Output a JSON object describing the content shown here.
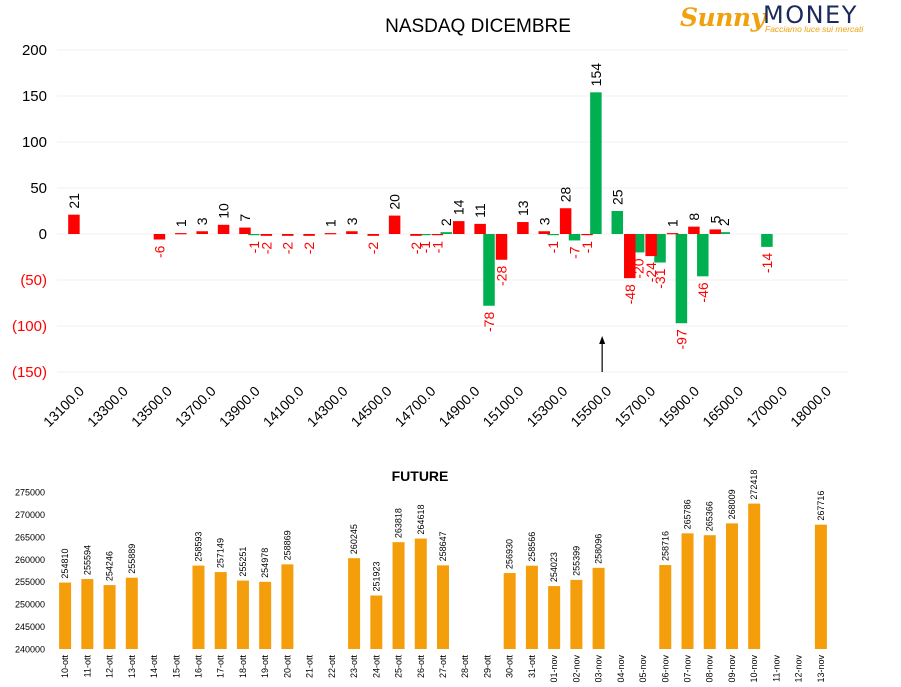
{
  "logo": {
    "brand_part1": "Sunny",
    "brand_part2": "MONEY",
    "tagline": "Facciamo luce sui mercati"
  },
  "colors": {
    "positive": "#00b050",
    "negative": "#ff0000",
    "negative_label": "#ff0000",
    "future_bar": "#f59e0b",
    "text": "#000000"
  },
  "chart_data": [
    {
      "type": "bar",
      "title": "NASDAQ DICEMBRE",
      "ylim": [
        -150,
        200
      ],
      "y_ticks": [
        "200",
        "150",
        "100",
        "50",
        "0",
        "(50)",
        "(100)",
        "(150)"
      ],
      "x_tick_labels": [
        "13100.0",
        "13300.0",
        "13500.0",
        "13700.0",
        "13900.0",
        "14100.0",
        "14300.0",
        "14500.0",
        "14700.0",
        "14900.0",
        "15100.0",
        "15300.0",
        "15500.0",
        "15700.0",
        "15900.0",
        "16500.0",
        "17000.0",
        "18000.0"
      ],
      "slot_count": 37,
      "series": [
        {
          "color": "green",
          "values": [
            null,
            null,
            null,
            null,
            null,
            null,
            null,
            null,
            null,
            -1,
            null,
            null,
            null,
            null,
            null,
            null,
            null,
            -1,
            2,
            null,
            -78,
            null,
            null,
            -1,
            -7,
            154,
            25,
            -20,
            -31,
            -97,
            -46,
            2,
            null,
            -14,
            null,
            null,
            null
          ]
        },
        {
          "color": "red",
          "values": [
            21,
            null,
            null,
            null,
            -6,
            1,
            3,
            10,
            7,
            -2,
            -2,
            -2,
            1,
            3,
            -2,
            20,
            -2,
            -1,
            14,
            11,
            -28,
            13,
            3,
            28,
            -1,
            null,
            -48,
            -24,
            1,
            8,
            5,
            null,
            null,
            null,
            null,
            null,
            null
          ]
        }
      ],
      "annotations": [
        {
          "type": "arrow",
          "slot": 25.5
        }
      ]
    },
    {
      "type": "bar",
      "title": "FUTURE",
      "ylim": [
        240000,
        275000
      ],
      "y_ticks": [
        "275000",
        "270000",
        "265000",
        "260000",
        "255000",
        "250000",
        "245000",
        "240000"
      ],
      "categories": [
        "10-ott",
        "11-ott",
        "12-ott",
        "13-ott",
        "14-ott",
        "15-ott",
        "16-ott",
        "17-ott",
        "18-ott",
        "19-ott",
        "20-ott",
        "21-ott",
        "22-ott",
        "23-ott",
        "24-ott",
        "25-ott",
        "26-ott",
        "27-ott",
        "28-ott",
        "29-ott",
        "30-ott",
        "31-ott",
        "01-nov",
        "02-nov",
        "03-nov",
        "04-nov",
        "05-nov",
        "06-nov",
        "07-nov",
        "08-nov",
        "09-nov",
        "10-nov",
        "11-nov",
        "12-nov",
        "13-nov"
      ],
      "values": [
        254810,
        255594,
        254246,
        255889,
        null,
        null,
        258593,
        257149,
        255251,
        254978,
        258869,
        null,
        null,
        260245,
        251923,
        263818,
        264618,
        258647,
        null,
        null,
        256930,
        258566,
        254023,
        255399,
        258096,
        null,
        null,
        258716,
        265786,
        265366,
        268009,
        272418,
        null,
        null,
        267716
      ]
    }
  ]
}
